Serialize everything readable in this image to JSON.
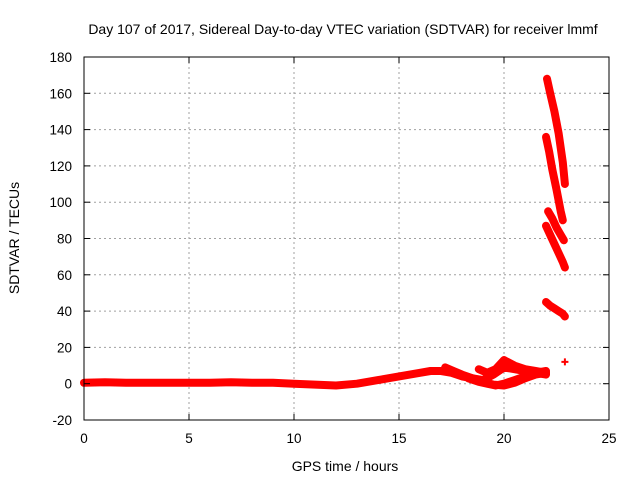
{
  "chart_data": {
    "type": "scatter",
    "title": "Day 107 of 2017, Sidereal Day-to-day VTEC variation (SDTVAR) for receiver lmmf",
    "xlabel": "GPS time / hours",
    "ylabel": "SDTVAR / TECUs",
    "xlim": [
      0,
      25
    ],
    "ylim": [
      -20,
      180
    ],
    "xticks": [
      0,
      5,
      10,
      15,
      20,
      25
    ],
    "yticks": [
      -20,
      0,
      20,
      40,
      60,
      80,
      100,
      120,
      140,
      160,
      180
    ],
    "grid": true,
    "marker": "plus",
    "series": [
      {
        "color": "#ff0000",
        "segments": [
          {
            "x": [
              0,
              1,
              2,
              3,
              4,
              5,
              6,
              7,
              8,
              9,
              10,
              11,
              12,
              13,
              14,
              15,
              16,
              16.5,
              17,
              17.5,
              18,
              18.5,
              19,
              19.5,
              20,
              20.5,
              21,
              21.5,
              22
            ],
            "y": [
              0.5,
              0.8,
              0.5,
              0.5,
              0.5,
              0.5,
              0.5,
              0.8,
              0.5,
              0.5,
              0,
              -0.5,
              -1,
              0,
              2,
              4,
              6,
              7,
              7,
              6,
              4,
              3,
              2,
              5,
              9,
              8,
              7,
              6,
              5
            ]
          },
          {
            "x": [
              17.2,
              17.6,
              18,
              18.5,
              19,
              19.5,
              20,
              20.5,
              21,
              21.5,
              22
            ],
            "y": [
              9,
              7,
              5,
              3,
              1,
              -0.5,
              -1,
              0.5,
              3,
              5,
              6
            ]
          },
          {
            "x": [
              18.3,
              18.8,
              19.2,
              19.6,
              20,
              20.5,
              21,
              21.5,
              22
            ],
            "y": [
              3,
              1,
              0,
              -1,
              0,
              2,
              4,
              6,
              7
            ]
          },
          {
            "x": [
              18.8,
              19.2,
              19.6,
              20,
              20.5,
              21,
              21.5,
              22
            ],
            "y": [
              8,
              6,
              8,
              13,
              10,
              8,
              7,
              6
            ]
          },
          {
            "x": [
              22.05,
              22.2,
              22.4,
              22.6,
              22.8,
              22.9
            ],
            "y": [
              168,
              160,
              150,
              138,
              122,
              110
            ]
          },
          {
            "x": [
              22.0,
              22.15,
              22.3,
              22.5,
              22.7,
              22.8
            ],
            "y": [
              136,
              128,
              118,
              107,
              95,
              90
            ]
          },
          {
            "x": [
              22.1,
              22.3,
              22.5,
              22.7,
              22.85
            ],
            "y": [
              95,
              91,
              86,
              82,
              79
            ]
          },
          {
            "x": [
              22.0,
              22.2,
              22.4,
              22.6,
              22.8,
              22.9
            ],
            "y": [
              87,
              82,
              77,
              72,
              67,
              64
            ]
          },
          {
            "x": [
              22.0,
              22.2,
              22.4,
              22.6,
              22.8,
              22.9
            ],
            "y": [
              45,
              43,
              41.5,
              40,
              38.5,
              37
            ]
          },
          {
            "x": [
              22.9
            ],
            "y": [
              12
            ]
          }
        ]
      }
    ]
  }
}
